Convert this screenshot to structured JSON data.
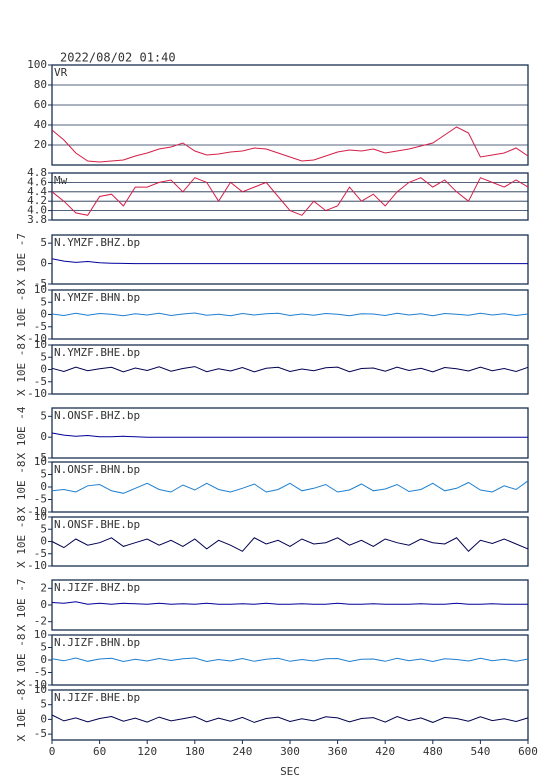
{
  "title": "2022/08/02 01:40",
  "x_label": "SEC",
  "x": [
    0,
    15,
    30,
    45,
    60,
    75,
    90,
    105,
    120,
    135,
    150,
    165,
    180,
    195,
    210,
    225,
    240,
    255,
    270,
    285,
    300,
    315,
    330,
    345,
    360,
    375,
    390,
    405,
    420,
    435,
    450,
    465,
    480,
    495,
    510,
    525,
    540,
    555,
    570,
    585,
    600
  ],
  "xlim": [
    0,
    600
  ],
  "xticks": [
    0,
    60,
    120,
    180,
    240,
    300,
    360,
    420,
    480,
    540,
    600
  ],
  "chart_data": [
    {
      "type": "line",
      "label": "VR",
      "color": "#d41e48",
      "grid": true,
      "ylim": [
        0,
        100
      ],
      "yticks": [
        20,
        40,
        60,
        80,
        100
      ],
      "values": [
        35,
        25,
        12,
        4,
        3,
        4,
        5,
        9,
        12,
        16,
        18,
        22,
        14,
        10,
        11,
        13,
        14,
        17,
        16,
        12,
        8,
        4,
        5,
        9,
        13,
        15,
        14,
        16,
        12,
        14,
        16,
        19,
        22,
        30,
        38,
        32,
        8,
        10,
        12,
        17,
        9
      ]
    },
    {
      "type": "line",
      "label": "Mw",
      "color": "#d41e48",
      "grid": true,
      "ylim": [
        3.8,
        4.8
      ],
      "yticks": [
        3.8,
        {
          "value": 4,
          "label": "4.0"
        },
        4.2,
        4.4,
        4.6,
        4.8
      ],
      "values": [
        4.4,
        4.2,
        3.95,
        3.9,
        4.3,
        4.35,
        4.1,
        4.5,
        4.5,
        4.6,
        4.65,
        4.4,
        4.7,
        4.6,
        4.2,
        4.6,
        4.4,
        4.5,
        4.6,
        4.3,
        4.0,
        3.9,
        4.2,
        4.0,
        4.1,
        4.5,
        4.2,
        4.35,
        4.1,
        4.4,
        4.6,
        4.7,
        4.5,
        4.65,
        4.4,
        4.2,
        4.7,
        4.6,
        4.5,
        4.65,
        4.5
      ]
    },
    {
      "type": "line",
      "label": "N.YMZF.BHZ.bp",
      "y_label": "X 10E -7",
      "color": "#00009c",
      "grid": false,
      "ylim": [
        -5,
        7
      ],
      "yticks": [
        -5,
        0,
        5
      ],
      "values": [
        1.2,
        0.6,
        0.3,
        0.5,
        0.2,
        0.1,
        0.05,
        0,
        0,
        0,
        0,
        0,
        0,
        0,
        0,
        0,
        0,
        0,
        0,
        0,
        0,
        0,
        0,
        0,
        0,
        0,
        0,
        0,
        0,
        0,
        0,
        0,
        0,
        0,
        0,
        0,
        0,
        0,
        0,
        0,
        0
      ]
    },
    {
      "type": "line",
      "label": "N.YMZF.BHN.bp",
      "y_label": "X 10E -8",
      "color": "#1e7fd0",
      "grid": false,
      "ylim": [
        -10,
        10
      ],
      "yticks": [
        -10,
        -5,
        0,
        5,
        10
      ],
      "values": [
        0.2,
        -0.4,
        0.5,
        -0.3,
        0.4,
        0.1,
        -0.5,
        0.3,
        -0.2,
        0.5,
        -0.4,
        0.2,
        0.6,
        -0.3,
        0.1,
        -0.5,
        0.4,
        -0.2,
        0.3,
        0.5,
        -0.4,
        0.2,
        -0.3,
        0.4,
        0.1,
        -0.5,
        0.3,
        0.2,
        -0.4,
        0.5,
        -0.2,
        0.3,
        -0.5,
        0.4,
        0.1,
        -0.3,
        0.5,
        -0.2,
        0.3,
        -0.4,
        0.2
      ]
    },
    {
      "type": "line",
      "label": "N.YMZF.BHE.bp",
      "y_label": "X 10E -8",
      "color": "#000050",
      "grid": false,
      "ylim": [
        -10,
        10
      ],
      "yticks": [
        -10,
        -5,
        0,
        5,
        10
      ],
      "values": [
        0.5,
        -0.8,
        1.0,
        -0.5,
        0.3,
        0.9,
        -1.0,
        0.6,
        -0.4,
        1.1,
        -0.7,
        0.4,
        1.2,
        -0.9,
        0.3,
        -0.6,
        0.8,
        -1.0,
        0.5,
        0.9,
        -0.8,
        0.2,
        -0.5,
        0.7,
        1.0,
        -0.9,
        0.4,
        0.6,
        -0.7,
        1.0,
        -0.4,
        0.5,
        -1.0,
        0.8,
        0.3,
        -0.6,
        1.0,
        -0.5,
        0.4,
        -0.8,
        0.9
      ]
    },
    {
      "type": "line",
      "label": "N.ONSF.BHZ.bp",
      "y_label": "X 10E -4",
      "color": "#00009c",
      "grid": false,
      "ylim": [
        -5,
        7
      ],
      "yticks": [
        -5,
        0,
        5
      ],
      "values": [
        1.0,
        0.5,
        0.2,
        0.4,
        0.1,
        0.1,
        0.2,
        0.1,
        0,
        0,
        0,
        0,
        0,
        0,
        0,
        0,
        0,
        0,
        0,
        0,
        0,
        0,
        0,
        0,
        0,
        0,
        0,
        0,
        0,
        0,
        0,
        0,
        0,
        0,
        0,
        0,
        0,
        0,
        0,
        0,
        0
      ]
    },
    {
      "type": "line",
      "label": "N.ONSF.BHN.bp",
      "y_label": "X 10E -8",
      "color": "#1e7fd0",
      "grid": false,
      "ylim": [
        -10,
        10
      ],
      "yticks": [
        -10,
        -5,
        0,
        5,
        10
      ],
      "values": [
        -1.5,
        -1.0,
        -2.0,
        0.5,
        1.0,
        -1.5,
        -2.5,
        -0.5,
        1.5,
        -1.0,
        -2.0,
        0.8,
        -1.2,
        1.5,
        -1.0,
        -2.0,
        -0.5,
        1.2,
        -2.0,
        -1.0,
        1.5,
        -1.5,
        -0.5,
        1.0,
        -2.0,
        -1.2,
        1.2,
        -1.5,
        -0.8,
        1.0,
        -1.8,
        -1.0,
        1.5,
        -1.5,
        -0.5,
        1.8,
        -1.2,
        -2.0,
        0.5,
        -1.0,
        2.5
      ]
    },
    {
      "type": "line",
      "label": "N.ONSF.BHE.bp",
      "y_label": "X 10E -8",
      "color": "#000050",
      "grid": false,
      "ylim": [
        -10,
        10
      ],
      "yticks": [
        -10,
        -5,
        0,
        5,
        10
      ],
      "values": [
        0,
        -2.5,
        1.0,
        -1.5,
        -0.5,
        1.5,
        -2.0,
        -0.5,
        1.0,
        -1.5,
        0.5,
        -2.0,
        1.0,
        -3.0,
        0.5,
        -1.5,
        -4.0,
        1.5,
        -1.0,
        0.5,
        -2.0,
        1.0,
        -1.0,
        -0.5,
        1.5,
        -1.5,
        0.5,
        -2.0,
        1.0,
        -0.5,
        -1.5,
        1.0,
        -0.5,
        -1.0,
        1.5,
        -4.0,
        0.5,
        -0.8,
        1.0,
        -1.0,
        -3.0
      ]
    },
    {
      "type": "line",
      "label": "N.JIZF.BHZ.bp",
      "y_label": "X 10E -7",
      "color": "#00009c",
      "grid": false,
      "ylim": [
        -3,
        3
      ],
      "yticks": [
        -2,
        0,
        2
      ],
      "values": [
        0.3,
        0.2,
        0.4,
        0.1,
        0.2,
        0.1,
        0.2,
        0.15,
        0.1,
        0.2,
        0.1,
        0.15,
        0.1,
        0.2,
        0.1,
        0.1,
        0.15,
        0.1,
        0.2,
        0.1,
        0.1,
        0.15,
        0.1,
        0.1,
        0.2,
        0.1,
        0.1,
        0.15,
        0.1,
        0.1,
        0.1,
        0.15,
        0.1,
        0.1,
        0.2,
        0.1,
        0.1,
        0.15,
        0.1,
        0.1,
        0.1
      ]
    },
    {
      "type": "line",
      "label": "N.JIZF.BHN.bp",
      "y_label": "X 10E -8",
      "color": "#1e7fd0",
      "grid": false,
      "ylim": [
        -10,
        10
      ],
      "yticks": [
        -10,
        -5,
        0,
        5,
        10
      ],
      "values": [
        0.5,
        -0.3,
        0.8,
        -0.5,
        0.4,
        0.7,
        -0.6,
        0.3,
        -0.4,
        0.6,
        -0.2,
        0.5,
        0.8,
        -0.6,
        0.2,
        -0.4,
        0.6,
        -0.5,
        0.3,
        0.7,
        -0.5,
        0.2,
        -0.4,
        0.5,
        0.6,
        -0.6,
        0.3,
        0.4,
        -0.5,
        0.7,
        -0.3,
        0.4,
        -0.6,
        0.5,
        0.2,
        -0.4,
        0.7,
        -0.3,
        0.3,
        -0.5,
        0.4
      ]
    },
    {
      "type": "line",
      "label": "N.JIZF.BHE.bp",
      "y_label": "X 10E -8",
      "color": "#000050",
      "grid": false,
      "ylim": [
        -7,
        10
      ],
      "yticks": [
        -5,
        0,
        5,
        10
      ],
      "values": [
        1.5,
        -0.5,
        0.5,
        -0.8,
        0.3,
        1.0,
        -0.6,
        0.4,
        -0.9,
        0.8,
        -0.5,
        0.2,
        1.0,
        -0.8,
        0.4,
        -0.6,
        0.7,
        -1.0,
        0.3,
        0.8,
        -0.7,
        0.2,
        -0.5,
        0.9,
        0.5,
        -0.8,
        0.3,
        0.6,
        -0.9,
        1.0,
        -0.4,
        0.5,
        -1.0,
        0.7,
        0.3,
        -0.6,
        0.9,
        -0.4,
        0.2,
        -0.7,
        0.5
      ]
    }
  ]
}
